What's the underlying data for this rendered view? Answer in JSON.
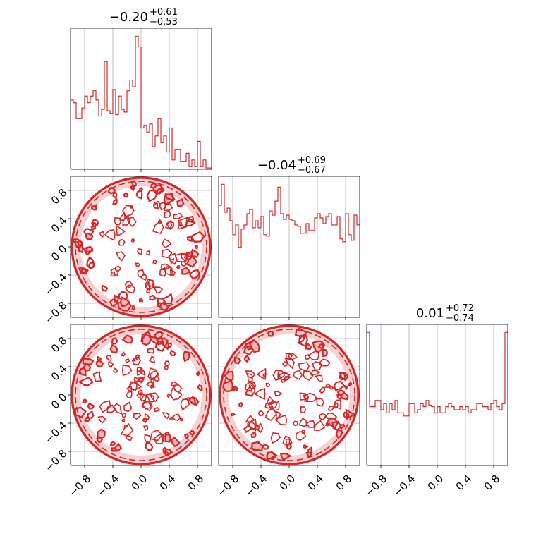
{
  "chart_data": {
    "type": "corner",
    "color": "#d62728",
    "tick_labels": [
      "−0.8",
      "−0.4",
      "0.0",
      "0.4",
      "0.8"
    ],
    "tick_values": [
      -0.8,
      -0.4,
      0.0,
      0.4,
      0.8
    ],
    "xlim": [
      -1.0,
      1.0
    ],
    "ylim": [
      -1.0,
      1.0
    ],
    "grid": true,
    "titles": [
      {
        "main": "−0.20",
        "plus": "+0.61",
        "minus": "−0.53"
      },
      {
        "main": "−0.04",
        "plus": "+0.69",
        "minus": "−0.67"
      },
      {
        "main": "0.01",
        "plus": "+0.72",
        "minus": "−0.74"
      }
    ],
    "histograms": [
      {
        "bin_edges_range": [
          -1.0,
          1.0
        ],
        "counts": [
          0.52,
          0.5,
          0.38,
          0.38,
          0.46,
          0.55,
          0.5,
          0.55,
          0.59,
          0.52,
          0.4,
          0.45,
          0.81,
          0.44,
          0.42,
          0.6,
          0.41,
          0.55,
          0.45,
          0.43,
          0.59,
          0.67,
          0.62,
          1.0,
          0.92,
          0.31,
          0.33,
          0.28,
          0.34,
          0.17,
          0.25,
          0.38,
          0.2,
          0.25,
          0.13,
          0.31,
          0.07,
          0.15,
          0.15,
          0.06,
          0.06,
          0.12,
          0.02,
          0.07,
          0.02,
          0.21,
          0.02,
          0.07,
          0.01,
          0.01
        ]
      },
      {
        "bin_edges_range": [
          -1.0,
          1.0
        ],
        "counts": [
          0.8,
          0.95,
          0.75,
          0.78,
          0.69,
          0.59,
          0.66,
          0.5,
          0.63,
          0.66,
          0.74,
          0.77,
          0.64,
          0.69,
          0.64,
          0.72,
          0.59,
          0.58,
          0.76,
          0.73,
          0.83,
          0.93,
          0.74,
          0.7,
          0.73,
          0.7,
          0.69,
          0.66,
          0.65,
          0.6,
          0.6,
          0.67,
          0.62,
          0.62,
          0.71,
          0.74,
          0.71,
          0.67,
          0.72,
          0.74,
          0.66,
          0.66,
          0.72,
          0.56,
          0.54,
          0.74,
          0.59,
          0.55,
          0.73,
          0.66
        ]
      },
      {
        "bin_edges_range": [
          -1.0,
          1.0
        ],
        "counts": [
          0.86,
          0.38,
          0.38,
          0.42,
          0.42,
          0.36,
          0.4,
          0.34,
          0.4,
          0.36,
          0.42,
          0.34,
          0.34,
          0.32,
          0.32,
          0.4,
          0.4,
          0.34,
          0.36,
          0.4,
          0.38,
          0.42,
          0.39,
          0.38,
          0.34,
          0.38,
          0.34,
          0.34,
          0.38,
          0.4,
          0.38,
          0.36,
          0.36,
          0.38,
          0.36,
          0.38,
          0.34,
          0.36,
          0.36,
          0.4,
          0.4,
          0.38,
          0.38,
          0.36,
          0.4,
          0.42,
          0.38,
          0.36,
          0.4,
          0.86
        ]
      }
    ],
    "contour_panels": [
      {
        "x_param": 0,
        "y_param": 1,
        "description": "uniform disk of radius 1"
      },
      {
        "x_param": 0,
        "y_param": 2,
        "description": "uniform disk of radius 1"
      },
      {
        "x_param": 1,
        "y_param": 2,
        "description": "uniform disk of radius 1"
      }
    ]
  }
}
